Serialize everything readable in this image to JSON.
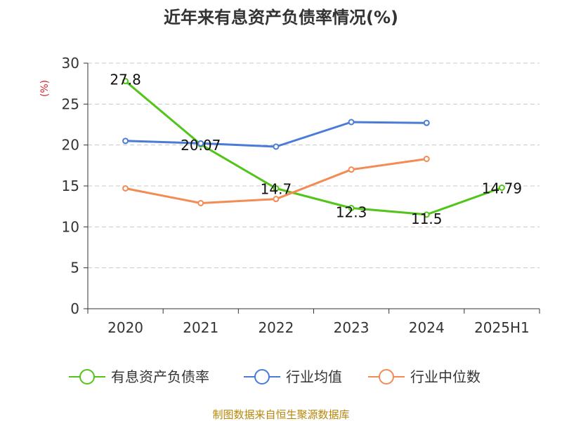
{
  "chart_data": {
    "type": "line",
    "title": "近年来有息资产负债率情况(%)",
    "ylabel": "(%)",
    "xlabel": "",
    "categories": [
      "2020",
      "2021",
      "2022",
      "2023",
      "2024",
      "2025H1"
    ],
    "ylim": [
      0,
      30
    ],
    "yticks": [
      0,
      5,
      10,
      15,
      20,
      25,
      30
    ],
    "grid": true,
    "legend_position": "bottom",
    "series": [
      {
        "name": "有息资产负债率",
        "color": "#52c41a",
        "values": [
          27.8,
          20.07,
          14.7,
          12.3,
          11.5,
          14.79
        ],
        "labels": [
          "27.8",
          "20.07",
          "14.7",
          "12.3",
          "11.5",
          "14.79"
        ]
      },
      {
        "name": "行业均值",
        "color": "#4a7bd6",
        "values": [
          20.5,
          20.2,
          19.8,
          22.8,
          22.7,
          null
        ]
      },
      {
        "name": "行业中位数",
        "color": "#f28b54",
        "values": [
          14.7,
          12.9,
          13.4,
          17.0,
          18.3,
          null
        ]
      }
    ],
    "source": "制图数据来自恒生聚源数据库"
  }
}
